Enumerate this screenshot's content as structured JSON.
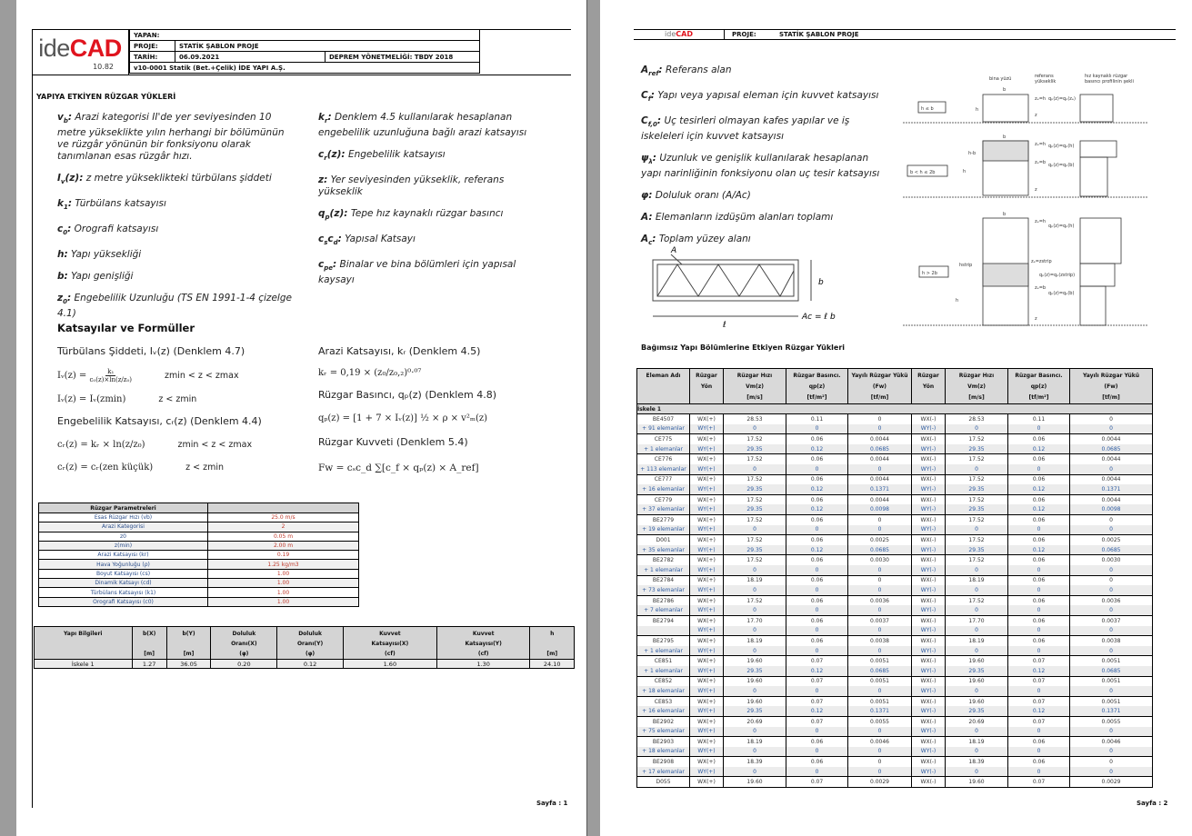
{
  "page1": {
    "logo": {
      "text_a": "ide",
      "text_b": "CAD",
      "version": "10.82"
    },
    "header": {
      "yapan_label": "YAPAN:",
      "proje_label": "PROJE:",
      "proje_value": "STATİK ŞABLON PROJE",
      "tarih_label": "TARİH:",
      "tarih_value": "06.09.2021",
      "deprem": "DEPREM YÖNETMELİĞİ: TBDY 2018",
      "version_line": "v10-0001 Statik (Bet.+Çelik) İDE YAPI A.Ş."
    },
    "section_title": "YAPIYA ETKİYEN RÜZGAR YÜKLERİ",
    "defs_left": [
      {
        "t": "v",
        "s": "b",
        "d": "Arazi kategorisi II'de yer seviyesinden 10 metre yükseklikte yılın herhangi bir bölümünün ve rüzgâr yönünün bir fonksiyonu olarak tanımlanan esas rüzgâr hızı."
      },
      {
        "t": "I",
        "s": "v",
        "t2": "(z):",
        "d": "z metre yükseklikteki türbülans şiddeti"
      },
      {
        "t": "k",
        "s": "1",
        "d": "Türbülans katsayısı"
      },
      {
        "t": "c",
        "s": "0",
        "d": "Orografi katsayısı"
      },
      {
        "t": "h",
        "s": "",
        "d": "Yapı yüksekliği"
      },
      {
        "t": "b",
        "s": "",
        "d": "Yapı genişliği"
      },
      {
        "t": "z",
        "s": "0",
        "d": "Engebelilik Uzunluğu (TS EN 1991-1-4 çizelge 4.1)"
      }
    ],
    "defs_right": [
      {
        "t": "k",
        "s": "r",
        "d": "Denklem 4.5 kullanılarak hesaplanan engebelilik uzunluğuna bağlı arazi katsayısı"
      },
      {
        "t": "c",
        "s": "r",
        "t2": "(z):",
        "d": "Engebelilik katsayısı"
      },
      {
        "t": "z",
        "s": "",
        "d": "Yer seviyesinden yükseklik, referans yükseklik"
      },
      {
        "t": "q",
        "s": "p",
        "t2": "(z):",
        "d": "Tepe hız kaynaklı rüzgar basıncı"
      },
      {
        "t": "c",
        "s": "s",
        "t2": "c",
        "s2": "d",
        "d": "Yapısal Katsayı"
      },
      {
        "t": "c",
        "s": "pe",
        "d": "Binalar ve bina bölümleri için yapısal kaysayı"
      }
    ],
    "formulas_title": "Katsayılar ve Formüller",
    "formulas": {
      "turb_title": "Türbülans Şiddeti, Iᵥ(z) (Denklem 4.7)",
      "turb_lhs": "Iᵥ(z) =",
      "turb_num": "k₁",
      "turb_den": "c₀(z)×ln(z/z₀)",
      "turb_cond": "zmin < z < zmax",
      "turb2": "Iᵥ(z) = Iᵥ(zmin)",
      "turb2_cond": "z < zmin",
      "eng_title": "Engebelilik Katsayısı, cᵣ(z) (Denklem 4.4)",
      "eng1": "cᵣ(z) = kᵣ × ln(z/z₀)",
      "eng1_cond": "zmin < z < zmax",
      "eng2": "cᵣ(z) = cᵣ(zen küçük)",
      "eng2_cond": "z < zmin",
      "arazi_title": "Arazi Katsayısı, kᵣ (Denklem 4.5)",
      "arazi": "kᵣ = 0,19 × (z₀/z₀,₂)⁰·⁰⁷",
      "bas_title": "Rüzgar Basıncı, qₚ(z) (Denklem 4.8)",
      "bas": "qₚ(z) = [1 + 7 × Iᵥ(z)] ½ × ρ × v²ₘ(z)",
      "kuv_title": "Rüzgar Kuvveti (Denklem 5.4)",
      "kuv": "Fw = cₛc_d ∑[c_f × qₚ(z) × A_ref]"
    },
    "params": {
      "title": "Rüzgar Parametreleri",
      "rows": [
        [
          "Esas Rüzgar Hızı (vb)",
          "25.0 m/s"
        ],
        [
          "Arazi Kategorisi",
          "2"
        ],
        [
          "z0",
          "0.05 m"
        ],
        [
          "z(min)",
          "2.00 m"
        ],
        [
          "Arazi Katsayısı (kr)",
          "0.19"
        ],
        [
          "Hava Yoğunluğu (ρ)",
          "1.25 kg/m3"
        ],
        [
          "Boyut Katsayısı (cs)",
          "1.00"
        ],
        [
          "Dinamik Katsayı (cd)",
          "1.00"
        ],
        [
          "Türbülans Katsayısı (k1)",
          "1.00"
        ],
        [
          "Orografi Katsayısı (c0)",
          "1.00"
        ]
      ]
    },
    "building": {
      "headers": [
        [
          "Yapı Bilgileri",
          "",
          ""
        ],
        [
          "b(X)",
          "",
          "[m]"
        ],
        [
          "b(Y)",
          "",
          "[m]"
        ],
        [
          "Doluluk",
          "Oranı(X)",
          "(φ)"
        ],
        [
          "Doluluk",
          "Oranı(Y)",
          "(φ)"
        ],
        [
          "Kuvvet",
          "Katsayısı(X)",
          "(cf)"
        ],
        [
          "Kuvvet",
          "Katsayısı(Y)",
          "(cf)"
        ],
        [
          "h",
          "",
          "[m]"
        ]
      ],
      "row": [
        "İskele 1",
        "1.27",
        "36.05",
        "0.20",
        "0.12",
        "1.60",
        "1.30",
        "24.10"
      ]
    },
    "footer": "Sayfa : 1"
  },
  "page2": {
    "header": {
      "proje_label": "PROJE:",
      "proje_value": "STATİK ŞABLON PROJE"
    },
    "defs": [
      {
        "t": "A",
        "s": "ref",
        "d": "Referans alan"
      },
      {
        "t": "C",
        "s": "f",
        "d": "Yapı veya yapısal eleman için kuvvet katsayısı"
      },
      {
        "t": "C",
        "s": "f,0",
        "d": "Uç tesirleri olmayan kafes yapılar ve iş iskeleleri için kuvvet katsayısı"
      },
      {
        "t": "ψ",
        "s": "λ",
        "d": "Uzunluk ve genişlik kullanılarak hesaplanan yapı narinliğinin fonksiyonu olan uç tesir katsayısı"
      },
      {
        "t": "φ",
        "s": "",
        "d": "Doluluk oranı (A/Ac)"
      },
      {
        "t": "A",
        "s": "",
        "d": "Elemanların izdüşüm alanları toplamı"
      },
      {
        "t": "A",
        "s": "c",
        "d": "Toplam yüzey alanı"
      }
    ],
    "diagram": {
      "bina": "bina yüzü",
      "ref1": "referans",
      "ref2": "yükseklik",
      "prof1": "hız kaynaklı rüzgar",
      "prof2": "basıncı profilinin şekli",
      "case1": "h ≤ b",
      "case2": "b < h ≤ 2b",
      "case3": "h > 2b",
      "b": "b",
      "h": "h",
      "ze_h": "zₑ=h",
      "ze_b": "zₑ=b",
      "z": "z",
      "q_ze": "qₚ(z)=qₚ(zₑ)",
      "q_h": "qₚ(z)=qₚ(h)",
      "q_b": "qₚ(z)=qₚ(b)",
      "q_strip": "qₚ(z)=qₚ(zstrip)",
      "ze_strip": "zₑ=zstrip",
      "hstrip": "hstrip",
      "hb": "h-b"
    },
    "truss": {
      "A": "A",
      "b": "b",
      "l": "ℓ",
      "ac": "Ac = ℓ b"
    },
    "table_title": "Bağımsız Yapı Bölümlerine Etkiyen Rüzgar Yükleri",
    "table_headers": [
      [
        "Eleman Adı",
        "",
        ""
      ],
      [
        "Rüzgar",
        "Yön",
        ""
      ],
      [
        "Rüzgar Hızı",
        "Vm(z)",
        "[m/s]"
      ],
      [
        "Rüzgar Basıncı.",
        "qp(z)",
        "[tf/m²]"
      ],
      [
        "Yayılı Rüzgar Yükü",
        "(Fw)",
        "[tf/m]"
      ],
      [
        "Rüzgar",
        "Yön",
        ""
      ],
      [
        "Rüzgar Hızı",
        "Vm(z)",
        "[m/s]"
      ],
      [
        "Rüzgar Basıncı.",
        "qp(z)",
        "[tf/m²]"
      ],
      [
        "Yayılı Rüzgar Yükü",
        "(Fw)",
        "[tf/m]"
      ]
    ],
    "group": "İskele 1",
    "dirs": [
      "WX(+)",
      "WY(+)",
      "WX(-)",
      "WY(-)"
    ],
    "elements": [
      {
        "name": "BE4507",
        "count": "+ 91 elemanlar",
        "wx": [
          "28.53",
          "0.11",
          "0"
        ],
        "wy": [
          "0",
          "0",
          "0"
        ]
      },
      {
        "name": "CE775",
        "count": "+ 1 elemanlar",
        "wx": [
          "17.52",
          "0.06",
          "0.0044"
        ],
        "wy": [
          "29.35",
          "0.12",
          "0.0685"
        ]
      },
      {
        "name": "CE776",
        "count": "+ 113 elemanlar",
        "wx": [
          "17.52",
          "0.06",
          "0.0044"
        ],
        "wy": [
          "0",
          "0",
          "0"
        ]
      },
      {
        "name": "CE777",
        "count": "+ 16 elemanlar",
        "wx": [
          "17.52",
          "0.06",
          "0.0044"
        ],
        "wy": [
          "29.35",
          "0.12",
          "0.1371"
        ]
      },
      {
        "name": "CE779",
        "count": "+ 37 elemanlar",
        "wx": [
          "17.52",
          "0.06",
          "0.0044"
        ],
        "wy": [
          "29.35",
          "0.12",
          "0.0098"
        ]
      },
      {
        "name": "BE2779",
        "count": "+ 19 elemanlar",
        "wx": [
          "17.52",
          "0.06",
          "0"
        ],
        "wy": [
          "0",
          "0",
          "0"
        ]
      },
      {
        "name": "D001",
        "count": "+ 35 elemanlar",
        "wx": [
          "17.52",
          "0.06",
          "0.0025"
        ],
        "wy": [
          "29.35",
          "0.12",
          "0.0685"
        ]
      },
      {
        "name": "BE2782",
        "count": "+ 1 elemanlar",
        "wx": [
          "17.52",
          "0.06",
          "0.0030"
        ],
        "wy": [
          "0",
          "0",
          "0"
        ]
      },
      {
        "name": "BE2784",
        "count": "+ 73 elemanlar",
        "wx": [
          "18.19",
          "0.06",
          "0"
        ],
        "wy": [
          "0",
          "0",
          "0"
        ]
      },
      {
        "name": "BE2786",
        "count": "+ 7 elemanlar",
        "wx": [
          "17.52",
          "0.06",
          "0.0036"
        ],
        "wy": [
          "0",
          "0",
          "0"
        ]
      },
      {
        "name": "BE2794",
        "count": "",
        "wx": [
          "17.70",
          "0.06",
          "0.0037"
        ],
        "wy": [
          "0",
          "0",
          "0"
        ]
      },
      {
        "name": "BE2795",
        "count": "+ 1 elemanlar",
        "wx": [
          "18.19",
          "0.06",
          "0.0038"
        ],
        "wy": [
          "0",
          "0",
          "0"
        ]
      },
      {
        "name": "CE851",
        "count": "+ 1 elemanlar",
        "wx": [
          "19.60",
          "0.07",
          "0.0051"
        ],
        "wy": [
          "29.35",
          "0.12",
          "0.0685"
        ]
      },
      {
        "name": "CE852",
        "count": "+ 18 elemanlar",
        "wx": [
          "19.60",
          "0.07",
          "0.0051"
        ],
        "wy": [
          "0",
          "0",
          "0"
        ]
      },
      {
        "name": "CE853",
        "count": "+ 16 elemanlar",
        "wx": [
          "19.60",
          "0.07",
          "0.0051"
        ],
        "wy": [
          "29.35",
          "0.12",
          "0.1371"
        ]
      },
      {
        "name": "BE2902",
        "count": "+ 75 elemanlar",
        "wx": [
          "20.69",
          "0.07",
          "0.0055"
        ],
        "wy": [
          "0",
          "0",
          "0"
        ]
      },
      {
        "name": "BE2903",
        "count": "+ 18 elemanlar",
        "wx": [
          "18.19",
          "0.06",
          "0.0046"
        ],
        "wy": [
          "0",
          "0",
          "0"
        ]
      },
      {
        "name": "BE2908",
        "count": "+ 17 elemanlar",
        "wx": [
          "18.39",
          "0.06",
          "0"
        ],
        "wy": [
          "0",
          "0",
          "0"
        ]
      },
      {
        "name": "D055",
        "wx": [
          "19.60",
          "0.07",
          "0.0029"
        ]
      }
    ],
    "footer": "Sayfa : 2"
  },
  "colors": {
    "logo_red": "#e0141e",
    "header_gray": "#d4d4d4",
    "row_alt": "#ececec"
  }
}
